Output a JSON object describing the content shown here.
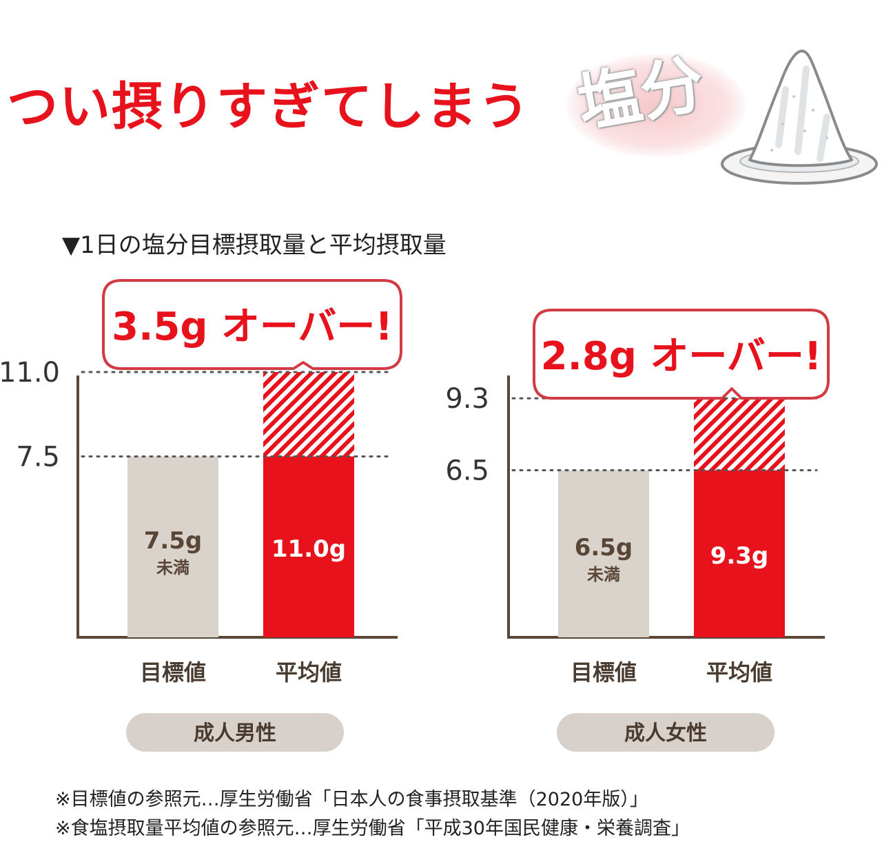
{
  "header": {
    "headline": "つい摂りすぎてしまう",
    "keyword": "塩分",
    "salt_icon": "salt-pile-icon"
  },
  "subtitle": "▼1日の塩分目標摂取量と平均摂取量",
  "colors": {
    "accent_red": "#e8121c",
    "target_gray": "#d9d3cc",
    "axis_brown": "#5a4636",
    "pill_gray": "#d8d1cb",
    "callout_border": "#d23a44"
  },
  "chart_data": [
    {
      "type": "bar",
      "group_label": "成人男性",
      "categories": [
        "目標値",
        "平均値"
      ],
      "values": [
        7.5,
        11.0
      ],
      "bar_labels": [
        "7.5g",
        "11.0g"
      ],
      "bar_sublabels": [
        "未満",
        ""
      ],
      "y_ticks": [
        "11.0",
        "7.5"
      ],
      "y_tick_values": [
        11.0,
        7.5
      ],
      "excess": 3.5,
      "callout": "3.5g オーバー!",
      "ylim": [
        0,
        12.5
      ],
      "grid": false
    },
    {
      "type": "bar",
      "group_label": "成人女性",
      "categories": [
        "目標値",
        "平均値"
      ],
      "values": [
        6.5,
        9.3
      ],
      "bar_labels": [
        "6.5g",
        "9.3g"
      ],
      "bar_sublabels": [
        "未満",
        ""
      ],
      "y_ticks": [
        "9.3",
        "6.5"
      ],
      "y_tick_values": [
        9.3,
        6.5
      ],
      "excess": 2.8,
      "callout": "2.8g オーバー!",
      "ylim": [
        0,
        12.5
      ],
      "grid": false
    }
  ],
  "footnotes": [
    "※目標値の参照元…厚生労働省「日本人の食事摂取基準（2020年版）」",
    "※食塩摂取量平均値の参照元…厚生労働省「平成30年国民健康・栄養調査」"
  ]
}
